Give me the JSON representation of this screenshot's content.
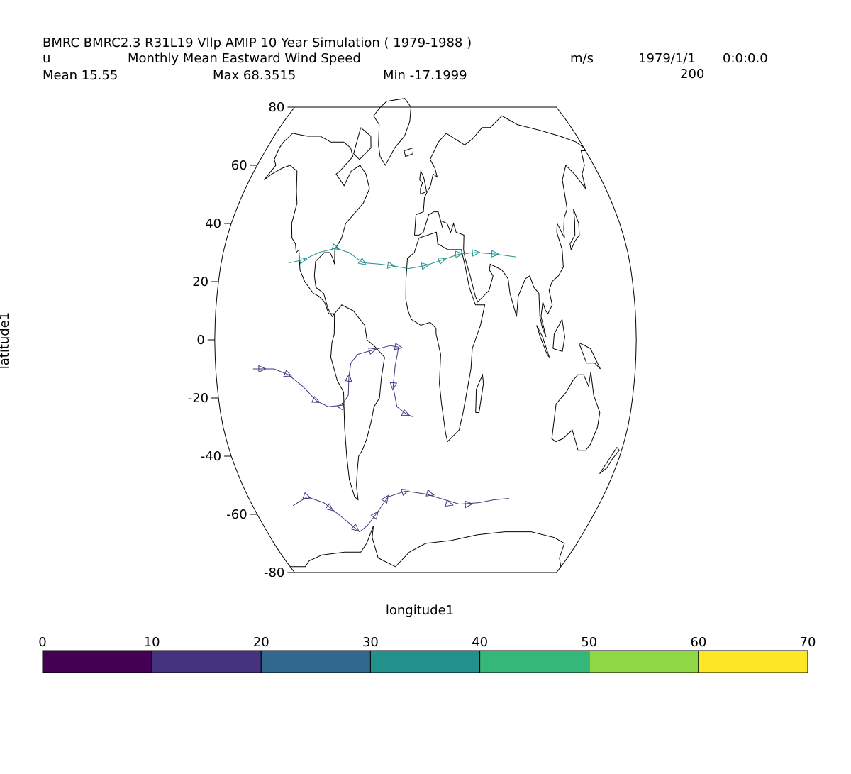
{
  "header": {
    "title": "BMRC BMRC2.3 R31L19 Vllp AMIP 10 Year Simulation ( 1979-1988 )",
    "var_name": "u",
    "long_name": "Monthly Mean Eastward Wind Speed",
    "units": "m/s",
    "date": "1979/1/1",
    "time": "0:0:0.0",
    "level": "200",
    "mean": "Mean 15.55",
    "max": "Max 68.3515",
    "min": "Min -17.1999"
  },
  "chart_data": {
    "type": "streamline-map",
    "projection": "robinson",
    "xlabel": "longitude1",
    "ylabel": "latitude1",
    "lat_ticks": [
      80,
      60,
      40,
      20,
      0,
      -20,
      -40,
      -60,
      -80
    ],
    "lat_tick_labels": [
      "80",
      "60",
      "40",
      "20",
      "0",
      "-20",
      "-40",
      "-60",
      "-80"
    ],
    "colorbar": {
      "ticks": [
        "0",
        "10",
        "20",
        "30",
        "40",
        "50",
        "60",
        "70"
      ],
      "colors": [
        "#440154",
        "#46337f",
        "#31688e",
        "#21918c",
        "#35b779",
        "#8fd744",
        "#fde725"
      ]
    },
    "streamlines": [
      {
        "name": "",
        "color": "#21918c",
        "points": [
          [
            -120,
            26.5
          ],
          [
            -108,
            27.5
          ],
          [
            -95,
            30
          ],
          [
            -80,
            31.5
          ],
          [
            -68,
            30
          ],
          [
            -55,
            26.5
          ],
          [
            -40,
            26
          ],
          [
            -30,
            25.5
          ],
          [
            -15,
            24.5
          ],
          [
            0,
            25.5
          ],
          [
            15,
            27.5
          ],
          [
            30,
            29.5
          ],
          [
            45,
            30
          ],
          [
            62,
            29.5
          ],
          [
            80,
            28.5
          ]
        ],
        "arrows": [
          [
            -108,
            27.5
          ],
          [
            -80,
            31.5
          ],
          [
            -55,
            26.5
          ],
          [
            -30,
            25.5
          ],
          [
            0,
            25.5
          ],
          [
            15,
            27.5
          ],
          [
            30,
            29.5
          ],
          [
            45,
            30
          ],
          [
            62,
            29.5
          ]
        ]
      },
      {
        "name": "",
        "color": "#46337f",
        "points": [
          [
            -148,
            -10
          ],
          [
            -140,
            -10
          ],
          [
            -130,
            -10
          ],
          [
            -118,
            -12
          ],
          [
            -106,
            -16
          ],
          [
            -95,
            -21
          ],
          [
            -85,
            -23
          ],
          [
            -73,
            -22.5
          ],
          [
            -67,
            -19
          ],
          [
            -66,
            -13
          ],
          [
            -64,
            -8
          ],
          [
            -58,
            -5
          ],
          [
            -45,
            -3.5
          ],
          [
            -30,
            -2
          ],
          [
            -23,
            -2.5
          ],
          [
            -26,
            -9
          ],
          [
            -28,
            -16
          ],
          [
            -25,
            -23
          ],
          [
            -17,
            -25.5
          ],
          [
            -11,
            -26.5
          ]
        ],
        "arrows": [
          [
            -140,
            -10
          ],
          [
            -118,
            -12
          ],
          [
            -95,
            -21
          ],
          [
            -73,
            -22.5
          ],
          [
            -66,
            -13
          ],
          [
            -45,
            -3.5
          ],
          [
            -28,
            -16
          ],
          [
            -17,
            -25.5
          ],
          [
            -23,
            -2.5
          ]
        ]
      },
      {
        "name": "",
        "color": "#46337f",
        "points": [
          [
            -138,
            -57
          ],
          [
            -120,
            -54
          ],
          [
            -105,
            -56
          ],
          [
            -90,
            -61
          ],
          [
            -75,
            -66
          ],
          [
            -65,
            -64
          ],
          [
            -53,
            -60
          ],
          [
            -38,
            -54
          ],
          [
            -20,
            -52
          ],
          [
            0,
            -53
          ],
          [
            15,
            -54.5
          ],
          [
            35,
            -56.5
          ],
          [
            55,
            -56
          ],
          [
            70,
            -55
          ],
          [
            85,
            -54.5
          ]
        ],
        "arrows": [
          [
            -120,
            -54
          ],
          [
            -100,
            -58
          ],
          [
            -78,
            -65
          ],
          [
            -53,
            -60
          ],
          [
            -40,
            -54.5
          ],
          [
            -20,
            -52
          ],
          [
            5,
            -53
          ],
          [
            25,
            -56.5
          ],
          [
            45,
            -56.5
          ]
        ]
      }
    ]
  }
}
